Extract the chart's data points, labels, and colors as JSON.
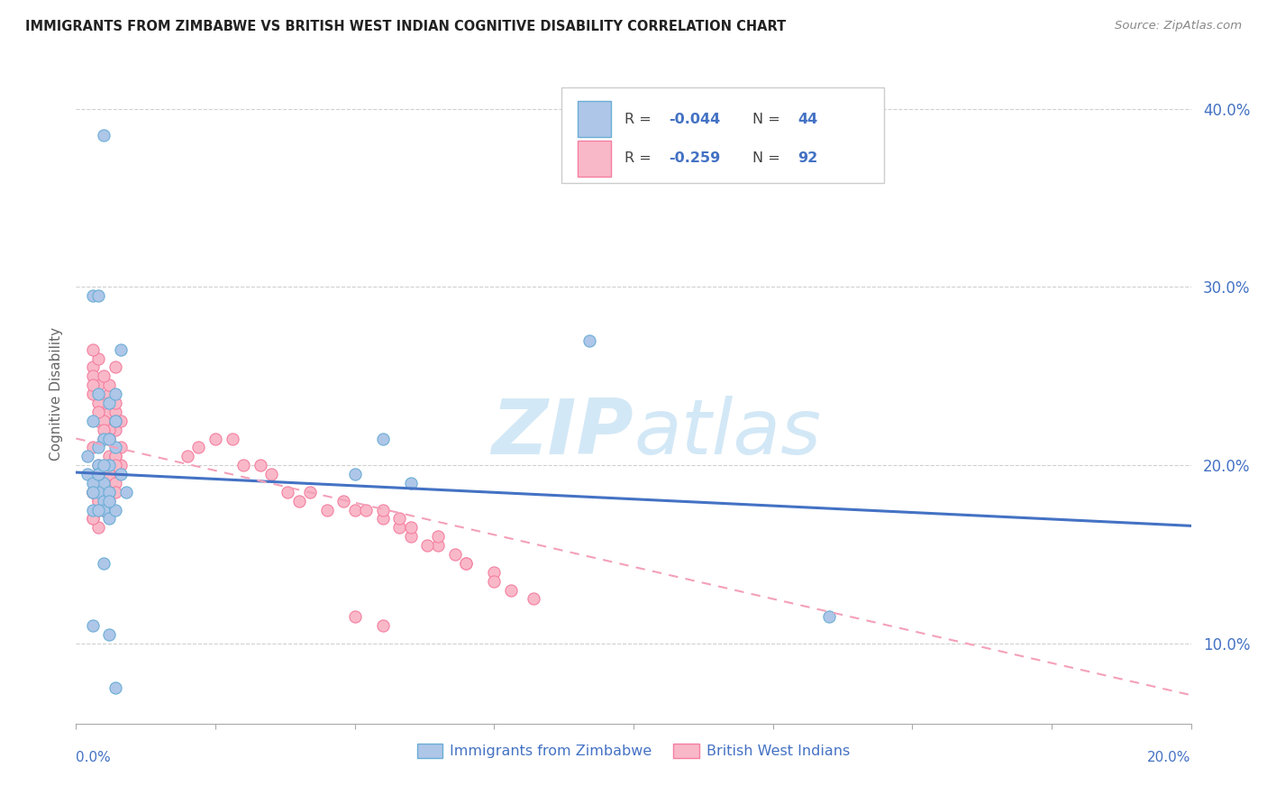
{
  "title": "IMMIGRANTS FROM ZIMBABWE VS BRITISH WEST INDIAN COGNITIVE DISABILITY CORRELATION CHART",
  "source": "Source: ZipAtlas.com",
  "ylabel": "Cognitive Disability",
  "yticks": [
    "10.0%",
    "20.0%",
    "30.0%",
    "40.0%"
  ],
  "ytick_vals": [
    0.1,
    0.2,
    0.3,
    0.4
  ],
  "xlim": [
    0.0,
    0.2
  ],
  "ylim": [
    0.055,
    0.425
  ],
  "color_zimbabwe_fill": "#aec6e8",
  "color_zimbabwe_edge": "#6baed6",
  "color_bwi_fill": "#f9b8c8",
  "color_bwi_edge": "#f47fa0",
  "color_line_zimbabwe": "#4472c4",
  "color_line_bwi": "#f4a0b8",
  "watermark_color": "#cce4f5",
  "zimbabwe_x": [
    0.004,
    0.007,
    0.002,
    0.005,
    0.006,
    0.003,
    0.008,
    0.004,
    0.005,
    0.003,
    0.006,
    0.004,
    0.007,
    0.003,
    0.005,
    0.002,
    0.006,
    0.004,
    0.007,
    0.003,
    0.005,
    0.006,
    0.004,
    0.003,
    0.005,
    0.004,
    0.006,
    0.003,
    0.005,
    0.007,
    0.004,
    0.006,
    0.008,
    0.003,
    0.005,
    0.05,
    0.055,
    0.06,
    0.092,
    0.135,
    0.004,
    0.006,
    0.007,
    0.009
  ],
  "zimbabwe_y": [
    0.2,
    0.21,
    0.195,
    0.19,
    0.2,
    0.185,
    0.195,
    0.185,
    0.215,
    0.225,
    0.235,
    0.24,
    0.225,
    0.295,
    0.385,
    0.205,
    0.215,
    0.195,
    0.24,
    0.175,
    0.18,
    0.185,
    0.21,
    0.19,
    0.175,
    0.195,
    0.17,
    0.185,
    0.2,
    0.175,
    0.295,
    0.105,
    0.265,
    0.11,
    0.145,
    0.195,
    0.215,
    0.19,
    0.27,
    0.115,
    0.175,
    0.18,
    0.075,
    0.185
  ],
  "bwi_x": [
    0.004,
    0.006,
    0.003,
    0.007,
    0.005,
    0.004,
    0.008,
    0.003,
    0.006,
    0.005,
    0.007,
    0.004,
    0.006,
    0.003,
    0.005,
    0.008,
    0.004,
    0.006,
    0.003,
    0.007,
    0.005,
    0.004,
    0.006,
    0.003,
    0.007,
    0.005,
    0.004,
    0.006,
    0.008,
    0.003,
    0.005,
    0.007,
    0.004,
    0.006,
    0.003,
    0.005,
    0.007,
    0.004,
    0.006,
    0.003,
    0.005,
    0.007,
    0.004,
    0.006,
    0.003,
    0.005,
    0.007,
    0.004,
    0.006,
    0.003,
    0.005,
    0.007,
    0.004,
    0.006,
    0.003,
    0.005,
    0.007,
    0.004,
    0.006,
    0.003,
    0.02,
    0.025,
    0.022,
    0.03,
    0.028,
    0.035,
    0.033,
    0.038,
    0.04,
    0.045,
    0.042,
    0.05,
    0.048,
    0.055,
    0.052,
    0.058,
    0.06,
    0.065,
    0.07,
    0.075,
    0.055,
    0.06,
    0.065,
    0.068,
    0.058,
    0.063,
    0.07,
    0.075,
    0.078,
    0.082,
    0.05,
    0.055
  ],
  "bwi_y": [
    0.245,
    0.23,
    0.255,
    0.22,
    0.235,
    0.225,
    0.21,
    0.25,
    0.24,
    0.215,
    0.23,
    0.26,
    0.245,
    0.265,
    0.25,
    0.225,
    0.235,
    0.22,
    0.24,
    0.255,
    0.225,
    0.23,
    0.215,
    0.245,
    0.235,
    0.22,
    0.195,
    0.205,
    0.2,
    0.21,
    0.195,
    0.225,
    0.2,
    0.215,
    0.185,
    0.195,
    0.205,
    0.19,
    0.2,
    0.185,
    0.195,
    0.205,
    0.175,
    0.19,
    0.185,
    0.175,
    0.2,
    0.18,
    0.195,
    0.185,
    0.175,
    0.19,
    0.18,
    0.185,
    0.17,
    0.175,
    0.185,
    0.165,
    0.18,
    0.17,
    0.205,
    0.215,
    0.21,
    0.2,
    0.215,
    0.195,
    0.2,
    0.185,
    0.18,
    0.175,
    0.185,
    0.175,
    0.18,
    0.17,
    0.175,
    0.165,
    0.16,
    0.155,
    0.145,
    0.14,
    0.175,
    0.165,
    0.16,
    0.15,
    0.17,
    0.155,
    0.145,
    0.135,
    0.13,
    0.125,
    0.115,
    0.11
  ]
}
